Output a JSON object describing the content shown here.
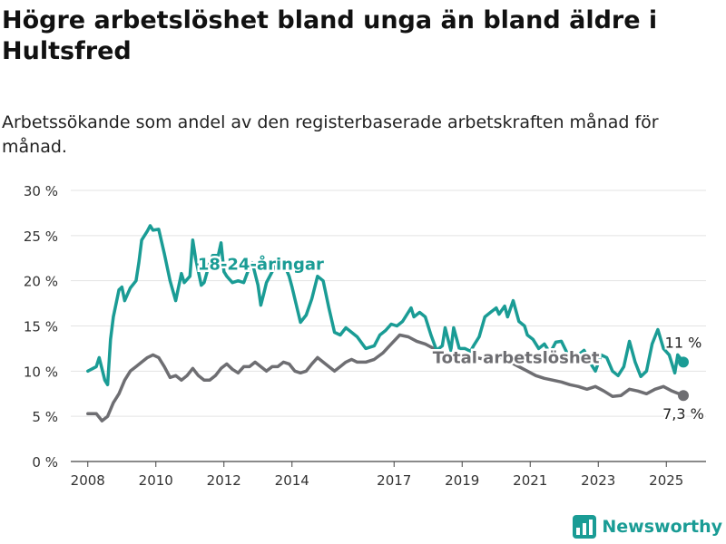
{
  "header": {
    "title": "Högre arbetslöshet bland unga än bland äldre i Hultsfred",
    "subtitle": "Arbetssökande som andel av den registerbaserade arbetskraften månad för månad."
  },
  "brand": {
    "name": "Newsworthy"
  },
  "colors": {
    "youth": "#1a9c95",
    "total": "#6e6e72",
    "grid": "#e3e3e3",
    "text": "#333333"
  },
  "chart_data": {
    "type": "line",
    "x_ticks": [
      "2008",
      "2010",
      "2012",
      "2014",
      "2017",
      "2019",
      "2021",
      "2023",
      "2025"
    ],
    "y_ticks": [
      "0 %",
      "5 %",
      "10 %",
      "15 %",
      "20 %",
      "25 %",
      "30 %"
    ],
    "ylim": [
      0,
      30
    ],
    "xlim": [
      "2007-07",
      "2026-03"
    ],
    "grid": true,
    "series": [
      {
        "name": "18-24-åringar",
        "color": "#1a9c95",
        "end_label": "11 %",
        "points": [
          [
            "2008-01",
            10.0
          ],
          [
            "2008-04",
            10.5
          ],
          [
            "2008-05",
            11.5
          ],
          [
            "2008-07",
            9.0
          ],
          [
            "2008-08",
            8.5
          ],
          [
            "2008-09",
            13.5
          ],
          [
            "2008-10",
            16.0
          ],
          [
            "2008-12",
            19.0
          ],
          [
            "2009-01",
            19.3
          ],
          [
            "2009-02",
            17.8
          ],
          [
            "2009-04",
            19.2
          ],
          [
            "2009-06",
            20.0
          ],
          [
            "2009-07",
            22.0
          ],
          [
            "2009-08",
            24.5
          ],
          [
            "2009-10",
            25.5
          ],
          [
            "2009-11",
            26.1
          ],
          [
            "2009-12",
            25.6
          ],
          [
            "2010-02",
            25.7
          ],
          [
            "2010-04",
            23.0
          ],
          [
            "2010-06",
            20.0
          ],
          [
            "2010-08",
            17.8
          ],
          [
            "2010-10",
            20.8
          ],
          [
            "2010-11",
            19.8
          ],
          [
            "2011-01",
            20.5
          ],
          [
            "2011-02",
            24.5
          ],
          [
            "2011-03",
            22.5
          ],
          [
            "2011-05",
            19.5
          ],
          [
            "2011-06",
            19.8
          ],
          [
            "2011-08",
            22.0
          ],
          [
            "2011-09",
            22.8
          ],
          [
            "2011-11",
            22.8
          ],
          [
            "2011-12",
            24.2
          ],
          [
            "2012-01",
            21.0
          ],
          [
            "2012-02",
            20.5
          ],
          [
            "2012-04",
            19.8
          ],
          [
            "2012-06",
            20.0
          ],
          [
            "2012-08",
            19.8
          ],
          [
            "2012-10",
            21.5
          ],
          [
            "2012-11",
            22.0
          ],
          [
            "2013-01",
            19.5
          ],
          [
            "2013-02",
            17.3
          ],
          [
            "2013-03",
            18.5
          ],
          [
            "2013-04",
            19.8
          ],
          [
            "2013-06",
            21.0
          ],
          [
            "2013-08",
            22.5
          ],
          [
            "2013-10",
            22.0
          ],
          [
            "2013-12",
            20.5
          ],
          [
            "2014-01",
            19.3
          ],
          [
            "2014-02",
            18.0
          ],
          [
            "2014-04",
            15.4
          ],
          [
            "2014-06",
            16.2
          ],
          [
            "2014-08",
            18.0
          ],
          [
            "2014-10",
            20.5
          ],
          [
            "2014-12",
            20.0
          ],
          [
            "2015-02",
            17.0
          ],
          [
            "2015-04",
            14.3
          ],
          [
            "2015-06",
            14.0
          ],
          [
            "2015-08",
            14.8
          ],
          [
            "2015-10",
            14.3
          ],
          [
            "2015-12",
            13.8
          ],
          [
            "2016-03",
            12.5
          ],
          [
            "2016-06",
            12.8
          ],
          [
            "2016-08",
            14.0
          ],
          [
            "2016-10",
            14.5
          ],
          [
            "2016-12",
            15.2
          ],
          [
            "2017-02",
            15.0
          ],
          [
            "2017-04",
            15.5
          ],
          [
            "2017-06",
            16.5
          ],
          [
            "2017-07",
            17.0
          ],
          [
            "2017-08",
            16.0
          ],
          [
            "2017-10",
            16.5
          ],
          [
            "2017-12",
            16.0
          ],
          [
            "2018-02",
            14.0
          ],
          [
            "2018-04",
            12.3
          ],
          [
            "2018-06",
            12.8
          ],
          [
            "2018-07",
            14.8
          ],
          [
            "2018-09",
            12.3
          ],
          [
            "2018-10",
            14.8
          ],
          [
            "2018-12",
            12.5
          ],
          [
            "2019-02",
            12.5
          ],
          [
            "2019-04",
            12.2
          ],
          [
            "2019-05",
            12.8
          ],
          [
            "2019-07",
            13.8
          ],
          [
            "2019-09",
            16.0
          ],
          [
            "2019-11",
            16.5
          ],
          [
            "2020-01",
            17.0
          ],
          [
            "2020-02",
            16.3
          ],
          [
            "2020-04",
            17.2
          ],
          [
            "2020-05",
            16.0
          ],
          [
            "2020-07",
            17.8
          ],
          [
            "2020-09",
            15.5
          ],
          [
            "2020-11",
            15.0
          ],
          [
            "2020-12",
            14.0
          ],
          [
            "2021-02",
            13.5
          ],
          [
            "2021-04",
            12.5
          ],
          [
            "2021-06",
            13.0
          ],
          [
            "2021-08",
            12.0
          ],
          [
            "2021-10",
            13.2
          ],
          [
            "2021-12",
            13.3
          ],
          [
            "2022-02",
            12.0
          ],
          [
            "2022-04",
            11.5
          ],
          [
            "2022-06",
            11.8
          ],
          [
            "2022-08",
            12.3
          ],
          [
            "2022-10",
            11.0
          ],
          [
            "2022-12",
            10.0
          ],
          [
            "2023-02",
            11.8
          ],
          [
            "2023-04",
            11.5
          ],
          [
            "2023-06",
            10.0
          ],
          [
            "2023-08",
            9.5
          ],
          [
            "2023-10",
            10.5
          ],
          [
            "2023-12",
            13.3
          ],
          [
            "2024-02",
            11.0
          ],
          [
            "2024-04",
            9.4
          ],
          [
            "2024-06",
            10.0
          ],
          [
            "2024-08",
            13.0
          ],
          [
            "2024-10",
            14.6
          ],
          [
            "2024-12",
            12.5
          ],
          [
            "2025-02",
            11.8
          ],
          [
            "2025-04",
            9.8
          ],
          [
            "2025-05",
            11.8
          ],
          [
            "2025-07",
            11.0
          ]
        ]
      },
      {
        "name": "Total arbetslöshet",
        "color": "#6e6e72",
        "end_label": "7,3 %",
        "points": [
          [
            "2008-01",
            5.3
          ],
          [
            "2008-04",
            5.3
          ],
          [
            "2008-06",
            4.5
          ],
          [
            "2008-08",
            5.0
          ],
          [
            "2008-10",
            6.5
          ],
          [
            "2008-12",
            7.5
          ],
          [
            "2009-02",
            9.0
          ],
          [
            "2009-04",
            10.0
          ],
          [
            "2009-06",
            10.5
          ],
          [
            "2009-08",
            11.0
          ],
          [
            "2009-10",
            11.5
          ],
          [
            "2009-12",
            11.8
          ],
          [
            "2010-02",
            11.5
          ],
          [
            "2010-04",
            10.5
          ],
          [
            "2010-06",
            9.3
          ],
          [
            "2010-08",
            9.5
          ],
          [
            "2010-10",
            9.0
          ],
          [
            "2010-12",
            9.5
          ],
          [
            "2011-02",
            10.3
          ],
          [
            "2011-04",
            9.5
          ],
          [
            "2011-06",
            9.0
          ],
          [
            "2011-08",
            9.0
          ],
          [
            "2011-10",
            9.5
          ],
          [
            "2011-12",
            10.3
          ],
          [
            "2012-02",
            10.8
          ],
          [
            "2012-04",
            10.2
          ],
          [
            "2012-06",
            9.8
          ],
          [
            "2012-08",
            10.5
          ],
          [
            "2012-10",
            10.5
          ],
          [
            "2012-12",
            11.0
          ],
          [
            "2013-02",
            10.5
          ],
          [
            "2013-04",
            10.0
          ],
          [
            "2013-06",
            10.5
          ],
          [
            "2013-08",
            10.5
          ],
          [
            "2013-10",
            11.0
          ],
          [
            "2013-12",
            10.8
          ],
          [
            "2014-02",
            10.0
          ],
          [
            "2014-04",
            9.8
          ],
          [
            "2014-06",
            10.0
          ],
          [
            "2014-08",
            10.8
          ],
          [
            "2014-10",
            11.5
          ],
          [
            "2014-12",
            11.0
          ],
          [
            "2015-02",
            10.5
          ],
          [
            "2015-04",
            10.0
          ],
          [
            "2015-06",
            10.5
          ],
          [
            "2015-08",
            11.0
          ],
          [
            "2015-10",
            11.3
          ],
          [
            "2015-12",
            11.0
          ],
          [
            "2016-03",
            11.0
          ],
          [
            "2016-06",
            11.3
          ],
          [
            "2016-09",
            12.0
          ],
          [
            "2016-12",
            13.0
          ],
          [
            "2017-03",
            14.0
          ],
          [
            "2017-06",
            13.8
          ],
          [
            "2017-09",
            13.3
          ],
          [
            "2017-12",
            13.0
          ],
          [
            "2018-03",
            12.5
          ],
          [
            "2018-06",
            11.8
          ],
          [
            "2018-09",
            11.5
          ],
          [
            "2018-12",
            11.8
          ],
          [
            "2019-03",
            11.5
          ],
          [
            "2019-06",
            11.5
          ],
          [
            "2019-09",
            11.3
          ],
          [
            "2019-12",
            11.5
          ],
          [
            "2020-03",
            11.5
          ],
          [
            "2020-06",
            11.0
          ],
          [
            "2020-09",
            10.5
          ],
          [
            "2020-12",
            10.0
          ],
          [
            "2021-03",
            9.5
          ],
          [
            "2021-06",
            9.2
          ],
          [
            "2021-09",
            9.0
          ],
          [
            "2021-12",
            8.8
          ],
          [
            "2022-03",
            8.5
          ],
          [
            "2022-06",
            8.3
          ],
          [
            "2022-09",
            8.0
          ],
          [
            "2022-12",
            8.3
          ],
          [
            "2023-03",
            7.8
          ],
          [
            "2023-06",
            7.2
          ],
          [
            "2023-09",
            7.3
          ],
          [
            "2023-12",
            8.0
          ],
          [
            "2024-03",
            7.8
          ],
          [
            "2024-06",
            7.5
          ],
          [
            "2024-09",
            8.0
          ],
          [
            "2024-12",
            8.3
          ],
          [
            "2025-03",
            7.8
          ],
          [
            "2025-07",
            7.3
          ]
        ]
      }
    ],
    "annotations": [
      {
        "text": "18-24-åringar",
        "x": "2013-02",
        "y": 21.2,
        "color": "#1a9c95"
      },
      {
        "text": "Total arbetslöshet",
        "x": "2020-08",
        "y": 10.9,
        "color": "#6e6e72"
      }
    ]
  }
}
